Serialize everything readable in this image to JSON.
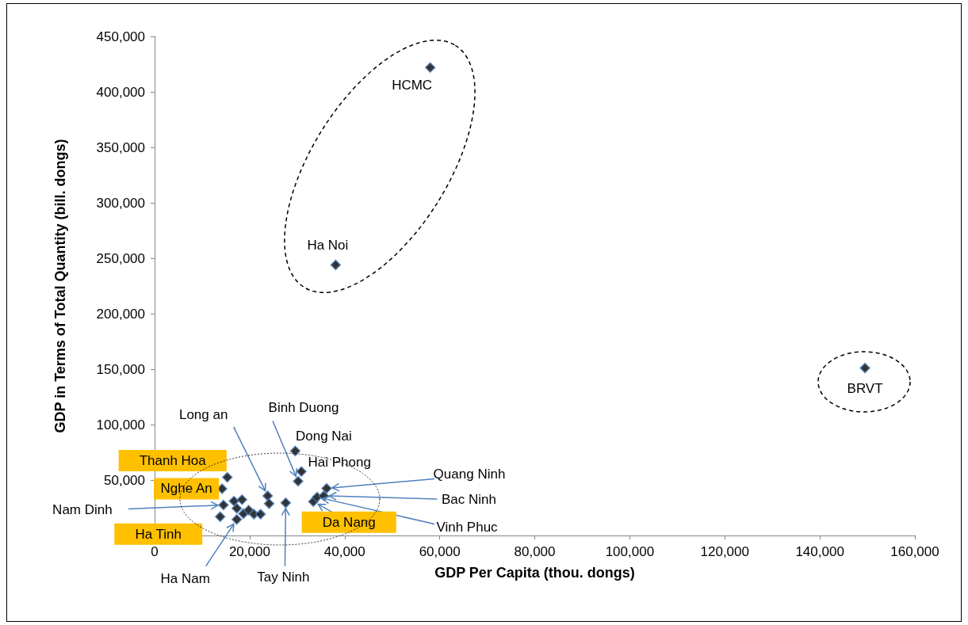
{
  "chart_data": {
    "type": "scatter",
    "xlabel": "GDP Per Capita (thou. dongs)",
    "ylabel": "GDP in Terms of Total Quantity (bill. dongs)",
    "series": [
      {
        "color": "#000000",
        "x": [
          58000,
          38100,
          149500,
          15300,
          14200,
          14500,
          13800,
          16700,
          18400,
          17300,
          18700,
          19800,
          17300,
          20900,
          22300,
          23800,
          24100,
          27600,
          29600,
          30900,
          30200,
          33400,
          34200,
          36200,
          35600
        ],
        "values": [
          422000,
          244000,
          151000,
          52500,
          42200,
          27500,
          16900,
          31100,
          32300,
          24500,
          19700,
          22800,
          14500,
          19200,
          19200,
          35800,
          28700,
          29400,
          76200,
          57700,
          48900,
          30600,
          34600,
          42500,
          35800
        ]
      }
    ],
    "marker": "diamond",
    "grid": false,
    "xlim": [
      0,
      160000
    ],
    "xticks": [
      0,
      {
        "value": 20000,
        "label": "20,000"
      },
      {
        "value": 40000,
        "label": "40,000"
      },
      {
        "value": 60000,
        "label": "60,000"
      },
      {
        "value": 80000,
        "label": "80,000"
      },
      {
        "value": 100000,
        "label": "100,000"
      },
      {
        "value": 120000,
        "label": "120,000"
      },
      {
        "value": 140000,
        "label": "140,000"
      },
      {
        "value": 160000,
        "label": "160,000"
      }
    ],
    "ylim": [
      0,
      450000
    ],
    "yticks": [
      {
        "value": 0,
        "label": null
      },
      {
        "value": 50000,
        "label": "50,000"
      },
      {
        "value": 100000,
        "label": "100,000"
      },
      {
        "value": 150000,
        "label": "150,000"
      },
      {
        "value": 200000,
        "label": "200,000"
      },
      {
        "value": 250000,
        "label": "250,000"
      },
      {
        "value": 300000,
        "label": "300,000"
      },
      {
        "value": 350000,
        "label": "350,000"
      },
      {
        "value": 400000,
        "label": "400,000"
      },
      {
        "value": 450000,
        "label": "450,000"
      }
    ],
    "annotations": [
      {
        "text": "HCMC",
        "x": 58000,
        "y": 422000
      },
      {
        "text": "Ha Noi",
        "x": 38100,
        "y": 244000
      },
      {
        "text": "BRVT",
        "x": 149500,
        "y": 151000
      },
      {
        "text": "Long an",
        "x": 23800,
        "y": 35800
      },
      {
        "text": "Binh Duong",
        "x": 30200,
        "y": 48900
      },
      {
        "text": "Dong Nai",
        "x": 29600,
        "y": 76200
      },
      {
        "text": "Hai Phong",
        "x": 30900,
        "y": 57700
      },
      {
        "text": "Quang Ninh",
        "x": 36200,
        "y": 42500
      },
      {
        "text": "Bac Ninh",
        "x": 35600,
        "y": 35800
      },
      {
        "text": "Vinh Phuc",
        "x": 34200,
        "y": 34600
      },
      {
        "text": "Da Nang",
        "x": 33400,
        "y": 30600
      },
      {
        "text": "Thanh Hoa",
        "x": 15300,
        "y": 52500
      },
      {
        "text": "Nghe An",
        "x": 14200,
        "y": 42200
      },
      {
        "text": "Nam Dinh",
        "x": 14500,
        "y": 27500
      },
      {
        "text": "Ha Tinh",
        "x": 13800,
        "y": 16900
      },
      {
        "text": "Ha Nam",
        "x": 17300,
        "y": 14500
      },
      {
        "text": "Tay Ninh",
        "x": 27600,
        "y": 29400
      }
    ]
  }
}
